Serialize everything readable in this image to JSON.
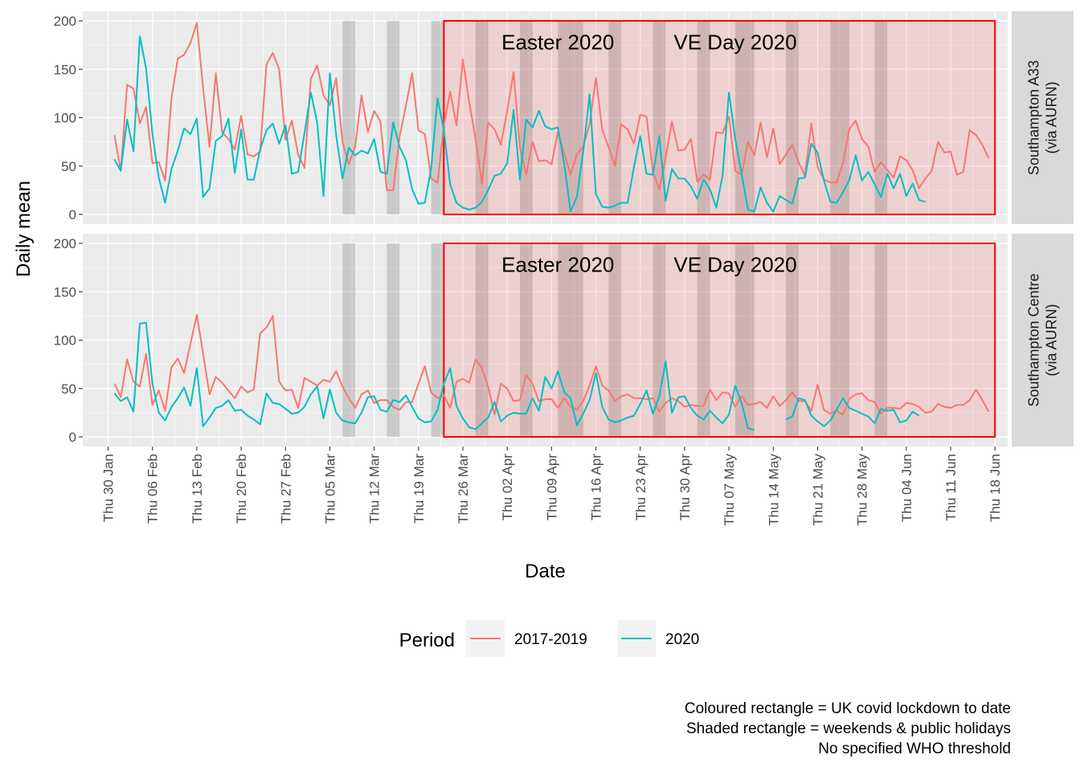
{
  "chart_data": {
    "type": "line",
    "xlabel": "Date",
    "ylabel": "Daily mean",
    "ylim": [
      0,
      200
    ],
    "y_ticks": [
      0,
      50,
      100,
      150,
      200
    ],
    "x_range": [
      "2020-01-26",
      "2020-06-20"
    ],
    "x_ticks": [
      {
        "date": "2020-01-30",
        "label": "Thu 30 Jan"
      },
      {
        "date": "2020-02-06",
        "label": "Thu 06 Feb"
      },
      {
        "date": "2020-02-13",
        "label": "Thu 13 Feb"
      },
      {
        "date": "2020-02-20",
        "label": "Thu 20 Feb"
      },
      {
        "date": "2020-02-27",
        "label": "Thu 27 Feb"
      },
      {
        "date": "2020-03-05",
        "label": "Thu 05 Mar"
      },
      {
        "date": "2020-03-12",
        "label": "Thu 12 Mar"
      },
      {
        "date": "2020-03-19",
        "label": "Thu 19 Mar"
      },
      {
        "date": "2020-03-26",
        "label": "Thu 26 Mar"
      },
      {
        "date": "2020-04-02",
        "label": "Thu 02 Apr"
      },
      {
        "date": "2020-04-09",
        "label": "Thu 09 Apr"
      },
      {
        "date": "2020-04-16",
        "label": "Thu 16 Apr"
      },
      {
        "date": "2020-04-23",
        "label": "Thu 23 Apr"
      },
      {
        "date": "2020-04-30",
        "label": "Thu 30 Apr"
      },
      {
        "date": "2020-05-07",
        "label": "Thu 07 May"
      },
      {
        "date": "2020-05-14",
        "label": "Thu 14 May"
      },
      {
        "date": "2020-05-21",
        "label": "Thu 21 May"
      },
      {
        "date": "2020-05-28",
        "label": "Thu 28 May"
      },
      {
        "date": "2020-06-04",
        "label": "Thu 04 Jun"
      },
      {
        "date": "2020-06-11",
        "label": "Thu 11  Jun"
      },
      {
        "date": "2020-06-18",
        "label": "Thu 18 Jun"
      }
    ],
    "lockdown": {
      "start": "2020-03-23",
      "end": "2020-06-18"
    },
    "shaded_periods": [
      {
        "start": "2020-03-07",
        "end": "2020-03-08"
      },
      {
        "start": "2020-03-14",
        "end": "2020-03-15"
      },
      {
        "start": "2020-03-21",
        "end": "2020-03-22"
      },
      {
        "start": "2020-03-28",
        "end": "2020-03-29"
      },
      {
        "start": "2020-04-04",
        "end": "2020-04-05"
      },
      {
        "start": "2020-04-10",
        "end": "2020-04-13"
      },
      {
        "start": "2020-04-18",
        "end": "2020-04-19"
      },
      {
        "start": "2020-04-25",
        "end": "2020-04-26"
      },
      {
        "start": "2020-05-02",
        "end": "2020-05-03"
      },
      {
        "start": "2020-05-08",
        "end": "2020-05-10"
      },
      {
        "start": "2020-05-16",
        "end": "2020-05-17"
      },
      {
        "start": "2020-05-23",
        "end": "2020-05-25"
      },
      {
        "start": "2020-05-30",
        "end": "2020-05-31"
      }
    ],
    "annotations": [
      {
        "text": "Easter 2020",
        "date": "2020-04-10",
        "y": 178
      },
      {
        "text": "VE Day 2020",
        "date": "2020-05-08",
        "y": 178
      }
    ],
    "legend": {
      "title": "Period",
      "position": "bottom"
    },
    "series_styles": [
      {
        "name": "2017-2019",
        "color": "#F8766D"
      },
      {
        "name": "2020",
        "color": "#00BFC4"
      }
    ],
    "panels": [
      {
        "strip": [
          "Southampton A33",
          "(via AURN)"
        ],
        "series": [
          {
            "name": "2017-2019",
            "start": "2020-01-31",
            "values": [
              82,
              45,
              134,
              130,
              94,
              111,
              53,
              54,
              35,
              120,
              161,
              165,
              177,
              198,
              130,
              70,
              146,
              85,
              78,
              67,
              102,
              62,
              60,
              65,
              155,
              167,
              150,
              77,
              97,
              62,
              48,
              140,
              154,
              123,
              113,
              141,
              75,
              52,
              70,
              123,
              85,
              107,
              96,
              25,
              25,
              80,
              112,
              146,
              87,
              83,
              37,
              33,
              92,
              127,
              92,
              160,
              116,
              78,
              32,
              95,
              88,
              72,
              107,
              147,
              69,
              41,
              75,
              55,
              56,
              52,
              85,
              63,
              41,
              62,
              70,
              93,
              141,
              87,
              70,
              50,
              93,
              88,
              73,
              103,
              101,
              44,
              26,
              58,
              96,
              66,
              67,
              78,
              34,
              41,
              36,
              85,
              84,
              101,
              45,
              41,
              75,
              61,
              95,
              59,
              89,
              52,
              62,
              72,
              54,
              40,
              94,
              49,
              36,
              33,
              33,
              53,
              88,
              97,
              78,
              70,
              44,
              54,
              46,
              38,
              60,
              56,
              46,
              27,
              37,
              45,
              75,
              64,
              65,
              41,
              44,
              87,
              82,
              72,
              58
            ]
          },
          {
            "name": "2020",
            "start": "2020-01-31",
            "values": [
              57,
              45,
              98,
              65,
              184,
              151,
              83,
              38,
              12,
              47,
              66,
              89,
              83,
              99,
              18,
              27,
              76,
              81,
              99,
              43,
              88,
              36,
              36,
              67,
              87,
              94,
              73,
              92,
              42,
              44,
              84,
              126,
              95,
              19,
              146,
              82,
              37,
              69,
              61,
              66,
              63,
              78,
              44,
              42,
              95,
              70,
              56,
              26,
              11,
              12,
              48,
              120,
              87,
              31,
              12,
              7,
              5,
              7,
              13,
              25,
              40,
              42,
              53,
              108,
              36,
              98,
              90,
              107,
              91,
              88,
              90,
              52,
              3,
              18,
              65,
              124,
              21,
              8,
              7,
              9,
              12,
              12,
              49,
              81,
              42,
              41,
              81,
              14,
              47,
              37,
              37,
              29,
              16,
              36,
              26,
              7,
              40,
              126,
              78,
              42,
              5,
              3,
              28,
              12,
              3,
              19,
              15,
              11,
              37,
              38,
              73,
              64,
              35,
              13,
              12,
              23,
              35,
              61,
              35,
              44,
              31,
              18,
              42,
              27,
              42,
              19,
              32,
              15,
              13
            ]
          }
        ]
      },
      {
        "strip": [
          "Southampton Centre",
          "(via AURN)"
        ],
        "series": [
          {
            "name": "2017-2019",
            "start": "2020-01-31",
            "values": [
              55,
              41,
              80,
              57,
              52,
              86,
              33,
              48,
              27,
              72,
              81,
              66,
              96,
              126,
              86,
              44,
              62,
              56,
              48,
              40,
              52,
              46,
              49,
              107,
              113,
              125,
              57,
              48,
              49,
              30,
              61,
              57,
              53,
              59,
              57,
              68,
              52,
              40,
              30,
              44,
              48,
              35,
              38,
              38,
              31,
              28,
              36,
              36,
              55,
              73,
              46,
              40,
              43,
              30,
              57,
              60,
              56,
              80,
              71,
              52,
              23,
              55,
              50,
              37,
              38,
              64,
              55,
              37,
              39,
              39,
              30,
              40,
              31,
              28,
              37,
              53,
              73,
              53,
              48,
              37,
              42,
              44,
              40,
              40,
              39,
              40,
              26,
              35,
              40,
              37,
              31,
              33,
              32,
              32,
              49,
              38,
              46,
              45,
              31,
              42,
              33,
              34,
              36,
              30,
              42,
              32,
              38,
              46,
              37,
              37,
              27,
              54,
              28,
              24,
              27,
              23,
              39,
              44,
              45,
              38,
              36,
              24,
              30,
              30,
              29,
              35,
              34,
              31,
              25,
              26,
              34,
              31,
              30,
              33,
              33,
              38,
              49,
              38,
              26
            ]
          },
          {
            "name": "2020",
            "start": "2020-01-31",
            "values": [
              45,
              37,
              41,
              26,
              117,
              118,
              55,
              25,
              17,
              31,
              40,
              51,
              32,
              71,
              11,
              20,
              30,
              32,
              38,
              27,
              28,
              22,
              18,
              13,
              45,
              35,
              34,
              29,
              24,
              25,
              31,
              44,
              52,
              19,
              49,
              25,
              17,
              15,
              14,
              25,
              41,
              42,
              28,
              26,
              38,
              36,
              43,
              31,
              19,
              15,
              16,
              28,
              55,
              71,
              32,
              19,
              10,
              8,
              14,
              20,
              36,
              16,
              22,
              25,
              24,
              24,
              40,
              27,
              62,
              50,
              68,
              46,
              40,
              12,
              24,
              38,
              66,
              31,
              18,
              15,
              17,
              20,
              22,
              34,
              48,
              24,
              42,
              78,
              25,
              41,
              42,
              30,
              22,
              18,
              27,
              20,
              14,
              23,
              53,
              35,
              9,
              7
            ]
          },
          {
            "name": "2020",
            "start": "2020-05-16",
            "values": [
              18,
              21,
              40,
              38,
              22,
              16,
              11,
              17,
              28,
              40,
              30,
              27,
              24,
              21,
              14,
              29,
              27,
              28,
              15,
              17,
              26,
              22
            ]
          }
        ]
      }
    ]
  },
  "caption": {
    "line1": "Coloured rectangle = UK covid lockdown to date",
    "line2": "Shaded rectangle = weekends & public holidays",
    "line3": "No specified WHO threshold"
  }
}
